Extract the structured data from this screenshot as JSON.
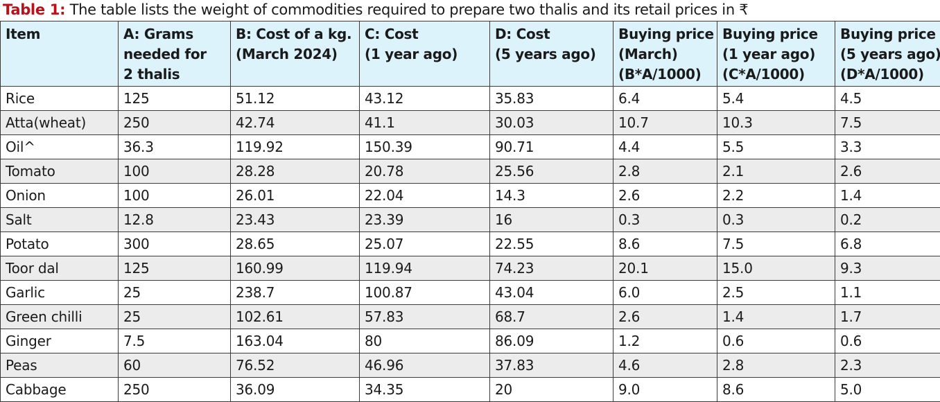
{
  "caption": {
    "label": "Table 1:",
    "text": " The table lists the weight of commodities required to prepare two thalis and its retail prices in ₹"
  },
  "table": {
    "headers": [
      [
        "Item"
      ],
      [
        "A: Grams",
        "needed for",
        "2 thalis"
      ],
      [
        "B: Cost of a kg.",
        "(March 2024)"
      ],
      [
        "C: Cost",
        "(1 year ago)"
      ],
      [
        "D: Cost",
        "(5 years ago)"
      ],
      [
        "Buying price",
        "(March)",
        "(B*A/1000)"
      ],
      [
        "Buying price",
        "(1 year ago)",
        "(C*A/1000)"
      ],
      [
        "Buying price",
        "(5 years ago)",
        "(D*A/1000)"
      ]
    ],
    "rows": [
      [
        "Rice",
        "125",
        "51.12",
        "43.12",
        "35.83",
        "6.4",
        "5.4",
        "4.5"
      ],
      [
        "Atta(wheat)",
        "250",
        "42.74",
        "41.1",
        "30.03",
        "10.7",
        "10.3",
        "7.5"
      ],
      [
        "Oil^",
        "36.3",
        "119.92",
        "150.39",
        "90.71",
        "4.4",
        "5.5",
        "3.3"
      ],
      [
        "Tomato",
        "100",
        "28.28",
        "20.78",
        "25.56",
        "2.8",
        "2.1",
        "2.6"
      ],
      [
        "Onion",
        "100",
        "26.01",
        "22.04",
        "14.3",
        "2.6",
        "2.2",
        "1.4"
      ],
      [
        "Salt",
        "12.8",
        "23.43",
        "23.39",
        "16",
        "0.3",
        "0.3",
        "0.2"
      ],
      [
        "Potato",
        "300",
        "28.65",
        "25.07",
        "22.55",
        "8.6",
        "7.5",
        "6.8"
      ],
      [
        "Toor dal",
        "125",
        "160.99",
        "119.94",
        "74.23",
        "20.1",
        "15.0",
        "9.3"
      ],
      [
        "Garlic",
        "25",
        "238.7",
        "100.87",
        "43.04",
        "6.0",
        "2.5",
        "1.1"
      ],
      [
        "Green chilli",
        "25",
        "102.61",
        "57.83",
        "68.7",
        "2.6",
        "1.4",
        "1.7"
      ],
      [
        "Ginger",
        "7.5",
        "163.04",
        "80",
        "86.09",
        "1.2",
        "0.6",
        "0.6"
      ],
      [
        "Peas",
        "60",
        "76.52",
        "46.96",
        "37.83",
        "4.6",
        "2.8",
        "2.3"
      ],
      [
        "Cabbage",
        "250",
        "36.09",
        "34.35",
        "20",
        "9.0",
        "8.6",
        "5.0"
      ]
    ]
  },
  "colors": {
    "caption_label": "#b5121b",
    "header_bg": "#dcf3fb",
    "row_alt_bg": "#ececec",
    "border": "#3a3a3a"
  }
}
